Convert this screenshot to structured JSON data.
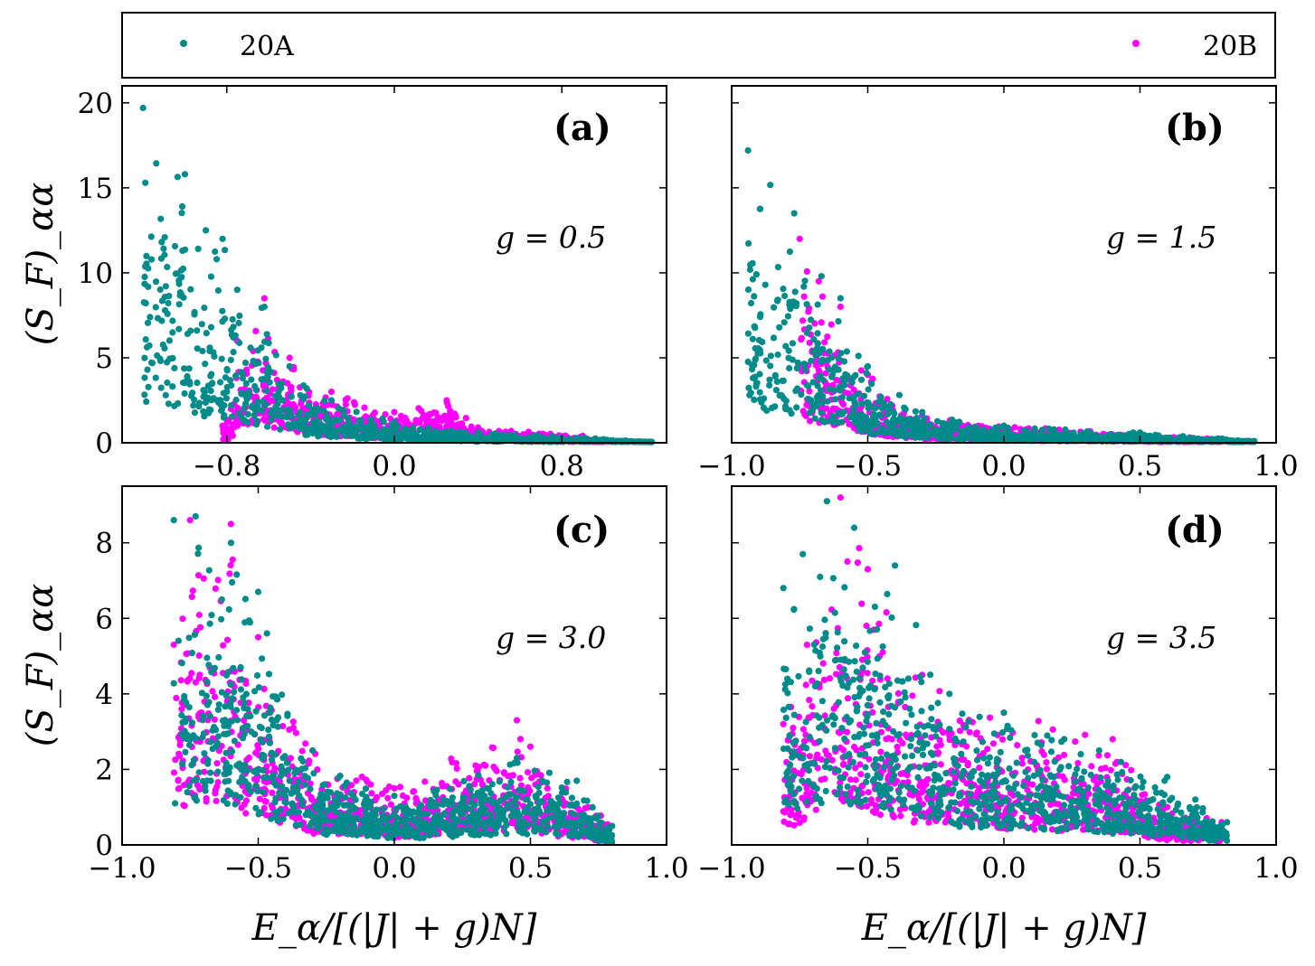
{
  "legend": {
    "items": [
      {
        "label": "20A",
        "color": "#008B8B"
      },
      {
        "label": "20B",
        "color": "#FF00FF"
      }
    ]
  },
  "colors": {
    "seriesA": "#008B8B",
    "seriesB": "#FF00FF"
  },
  "chart_data": [
    {
      "type": "scatter",
      "panel": "(a)",
      "annotation": "g = 0.5",
      "ylabel": "(S_F)_αα",
      "xlabel": "",
      "xlim": [
        -1.3,
        1.3
      ],
      "ylim": [
        0,
        21
      ],
      "xticks": [
        -0.8,
        0.0,
        0.8
      ],
      "xtick_labels": [
        "−0.8",
        "0.0",
        "0.8"
      ],
      "yticks": [
        0,
        5,
        10,
        15,
        20
      ],
      "ytick_labels": [
        "0",
        "5",
        "10",
        "15",
        "20"
      ],
      "series": [
        {
          "name": "20B",
          "color": "#FF00FF",
          "anchors": [
            [
              -0.82,
              1.0
            ],
            [
              -0.78,
              2.0
            ],
            [
              -0.75,
              6.0
            ],
            [
              -0.62,
              8.5
            ],
            [
              -0.5,
              5.0
            ],
            [
              -0.3,
              3.0
            ],
            [
              0.0,
              1.8
            ],
            [
              0.25,
              2.5
            ],
            [
              0.4,
              0.9
            ],
            [
              0.9,
              0.4
            ],
            [
              1.0,
              0.1
            ]
          ]
        },
        {
          "name": "20A",
          "color": "#008B8B",
          "anchors": [
            [
              -1.2,
              19.7
            ],
            [
              -1.0,
              15.8
            ],
            [
              -0.9,
              12.5
            ],
            [
              -0.82,
              12.0
            ],
            [
              -0.75,
              9.0
            ],
            [
              -0.62,
              8.0
            ],
            [
              -0.5,
              4.5
            ],
            [
              -0.3,
              2.5
            ],
            [
              0.0,
              1.2
            ],
            [
              0.4,
              0.6
            ],
            [
              0.9,
              0.3
            ],
            [
              1.23,
              0.05
            ]
          ]
        }
      ]
    },
    {
      "type": "scatter",
      "panel": "(b)",
      "annotation": "g = 1.5",
      "ylabel": "",
      "xlabel": "",
      "xlim": [
        -1.0,
        1.0
      ],
      "ylim": [
        0,
        21
      ],
      "xticks": [
        -1.0,
        -0.5,
        0.0,
        0.5,
        1.0
      ],
      "xtick_labels": [
        "−1.0",
        "−0.5",
        "0.0",
        "0.5",
        "1.0"
      ],
      "yticks": [
        0,
        5,
        10,
        15,
        20
      ],
      "series": [
        {
          "name": "20B",
          "color": "#FF00FF",
          "anchors": [
            [
              -0.75,
              12.0
            ],
            [
              -0.68,
              9.5
            ],
            [
              -0.6,
              8.0
            ],
            [
              -0.5,
              4.0
            ],
            [
              -0.3,
              1.6
            ],
            [
              0.0,
              1.0
            ],
            [
              0.5,
              0.5
            ],
            [
              0.8,
              0.2
            ]
          ]
        },
        {
          "name": "20A",
          "color": "#008B8B",
          "anchors": [
            [
              -0.94,
              17.2
            ],
            [
              -0.77,
              13.5
            ],
            [
              -0.67,
              9.8
            ],
            [
              -0.6,
              8.5
            ],
            [
              -0.5,
              4.5
            ],
            [
              -0.3,
              1.8
            ],
            [
              0.0,
              1.0
            ],
            [
              0.5,
              0.6
            ],
            [
              0.92,
              0.1
            ]
          ]
        }
      ]
    },
    {
      "type": "scatter",
      "panel": "(c)",
      "annotation": "g = 3.0",
      "ylabel": "(S_F)_αα",
      "xlabel": "E_α/[(|J| + g)N]",
      "xlim": [
        -1.0,
        1.0
      ],
      "ylim": [
        0,
        9.5
      ],
      "xticks": [
        -1.0,
        -0.5,
        0.0,
        0.5,
        1.0
      ],
      "xtick_labels": [
        "−1.0",
        "−0.5",
        "0.0",
        "0.5",
        "1.0"
      ],
      "yticks": [
        0,
        2,
        4,
        6,
        8
      ],
      "ytick_labels": [
        "0",
        "2",
        "4",
        "6",
        "8"
      ],
      "series": [
        {
          "name": "20B",
          "color": "#FF00FF",
          "anchors": [
            [
              -0.81,
              5.3
            ],
            [
              -0.75,
              8.6
            ],
            [
              -0.6,
              8.5
            ],
            [
              -0.5,
              5.5
            ],
            [
              -0.3,
              2.5
            ],
            [
              0.0,
              1.5
            ],
            [
              0.45,
              3.3
            ],
            [
              0.5,
              2.6
            ],
            [
              0.8,
              0.5
            ]
          ]
        },
        {
          "name": "20A",
          "color": "#008B8B",
          "anchors": [
            [
              -0.81,
              8.6
            ],
            [
              -0.73,
              8.7
            ],
            [
              -0.6,
              8.0
            ],
            [
              -0.5,
              6.7
            ],
            [
              -0.3,
              2.5
            ],
            [
              0.0,
              1.3
            ],
            [
              0.45,
              2.3
            ],
            [
              0.67,
              1.7
            ],
            [
              0.8,
              0.5
            ]
          ]
        }
      ]
    },
    {
      "type": "scatter",
      "panel": "(d)",
      "annotation": "g = 3.5",
      "ylabel": "",
      "xlabel": "E_α/[(|J| + g)N]",
      "xlim": [
        -1.0,
        1.0
      ],
      "ylim": [
        0,
        9.5
      ],
      "xticks": [
        -1.0,
        -0.5,
        0.0,
        0.5,
        1.0
      ],
      "xtick_labels": [
        "−1.0",
        "−0.5",
        "0.0",
        "0.5",
        "1.0"
      ],
      "yticks": [
        0,
        2,
        4,
        6,
        8
      ],
      "series": [
        {
          "name": "20B",
          "color": "#FF00FF",
          "anchors": [
            [
              -0.81,
              3.2
            ],
            [
              -0.6,
              9.2
            ],
            [
              -0.5,
              7.3
            ],
            [
              -0.3,
              4.5
            ],
            [
              0.0,
              3.5
            ],
            [
              0.4,
              2.8
            ],
            [
              0.6,
              1.0
            ],
            [
              0.8,
              0.6
            ]
          ]
        },
        {
          "name": "20A",
          "color": "#008B8B",
          "anchors": [
            [
              -0.81,
              6.8
            ],
            [
              -0.65,
              9.1
            ],
            [
              -0.55,
              8.4
            ],
            [
              -0.4,
              7.4
            ],
            [
              -0.2,
              4.0
            ],
            [
              0.0,
              3.5
            ],
            [
              0.35,
              2.5
            ],
            [
              0.6,
              1.8
            ],
            [
              0.82,
              0.6
            ]
          ]
        }
      ]
    }
  ]
}
